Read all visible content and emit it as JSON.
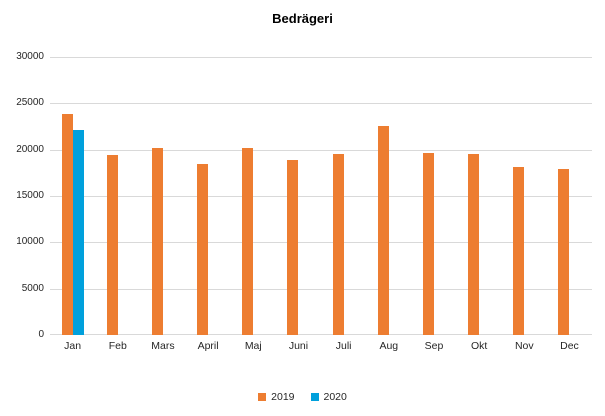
{
  "chart_data": {
    "type": "bar",
    "title": "Bedrägeri",
    "categories": [
      "Jan",
      "Feb",
      "Mars",
      "April",
      "Maj",
      "Juni",
      "Juli",
      "Aug",
      "Sep",
      "Okt",
      "Nov",
      "Dec"
    ],
    "series": [
      {
        "name": "2019",
        "color": "#ED7D31",
        "values": [
          23800,
          19400,
          20200,
          18500,
          20200,
          18900,
          19500,
          22600,
          19600,
          19500,
          18100,
          17900
        ]
      },
      {
        "name": "2020",
        "color": "#00A0DC",
        "values": [
          22100,
          null,
          null,
          null,
          null,
          null,
          null,
          null,
          null,
          null,
          null,
          null
        ]
      }
    ],
    "xlabel": "",
    "ylabel": "",
    "ylim": [
      0,
      30000
    ],
    "yticks": [
      0,
      5000,
      10000,
      15000,
      20000,
      25000,
      30000
    ],
    "grid": true,
    "legend_position": "bottom"
  },
  "colors": {
    "gridline": "#D9D9D9",
    "axis_text": "#262626",
    "title_text": "#000000",
    "background": "#FFFFFF"
  }
}
